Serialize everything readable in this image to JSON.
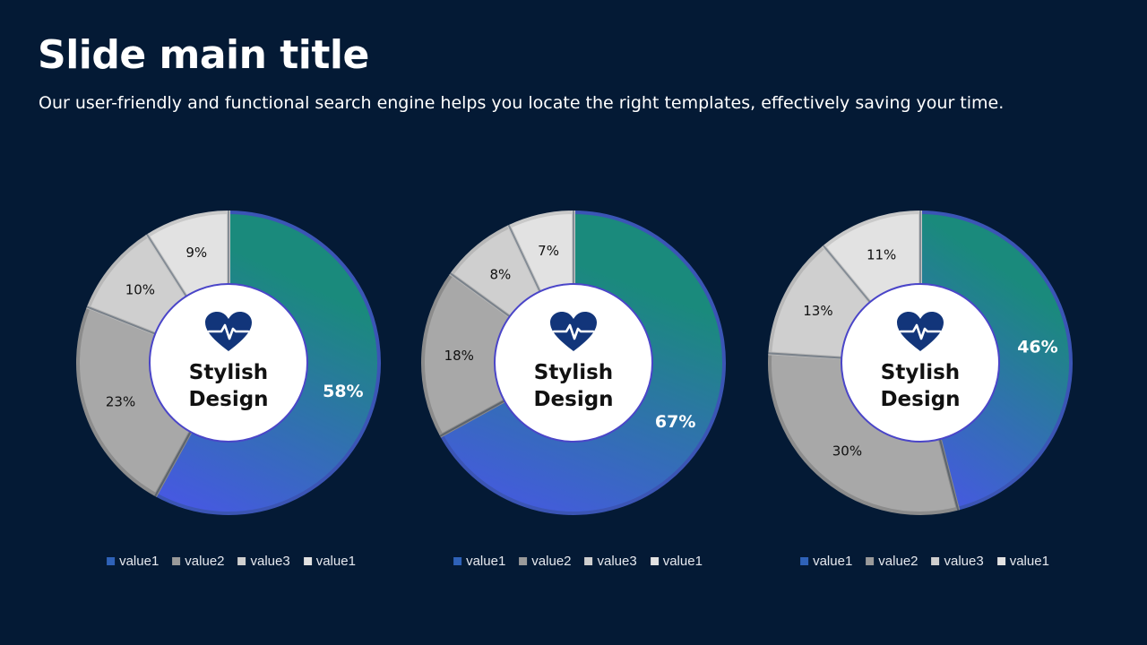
{
  "slide": {
    "title": "Slide main title",
    "subtitle": "Our user-friendly and functional search engine helps you locate the right templates, effectively saving your time."
  },
  "colors": {
    "background": "#041a35",
    "value1_gradient": [
      "#1a8a7c",
      "#4f4ff5"
    ],
    "value2": "#a8a8a8",
    "value3": "#cfcfcf",
    "value4": "#e2e2e2",
    "center_text": "#111111",
    "icon": "#12357a"
  },
  "chart_data": [
    {
      "type": "pie",
      "categories": [
        "value1",
        "value2",
        "value3",
        "value1"
      ],
      "values": [
        58,
        23,
        10,
        9
      ],
      "labels": [
        "58%",
        "23%",
        "10%",
        "9%"
      ],
      "center_label": [
        "Stylish",
        "Design"
      ],
      "center_icon": "heart-pulse-icon",
      "legend": [
        "value1",
        "value2",
        "value3",
        "value1"
      ]
    },
    {
      "type": "pie",
      "categories": [
        "value1",
        "value2",
        "value3",
        "value1"
      ],
      "values": [
        67,
        18,
        8,
        7
      ],
      "labels": [
        "67%",
        "18%",
        "8%",
        "7%"
      ],
      "center_label": [
        "Stylish",
        "Design"
      ],
      "center_icon": "heart-pulse-icon",
      "legend": [
        "value1",
        "value2",
        "value3",
        "value1"
      ]
    },
    {
      "type": "pie",
      "categories": [
        "value1",
        "value2",
        "value3",
        "value1"
      ],
      "values": [
        46,
        30,
        13,
        11
      ],
      "labels": [
        "46%",
        "30%",
        "13%",
        "11%"
      ],
      "center_label": [
        "Stylish",
        "Design"
      ],
      "center_icon": "heart-pulse-icon",
      "legend": [
        "value1",
        "value2",
        "value3",
        "value1"
      ]
    }
  ]
}
